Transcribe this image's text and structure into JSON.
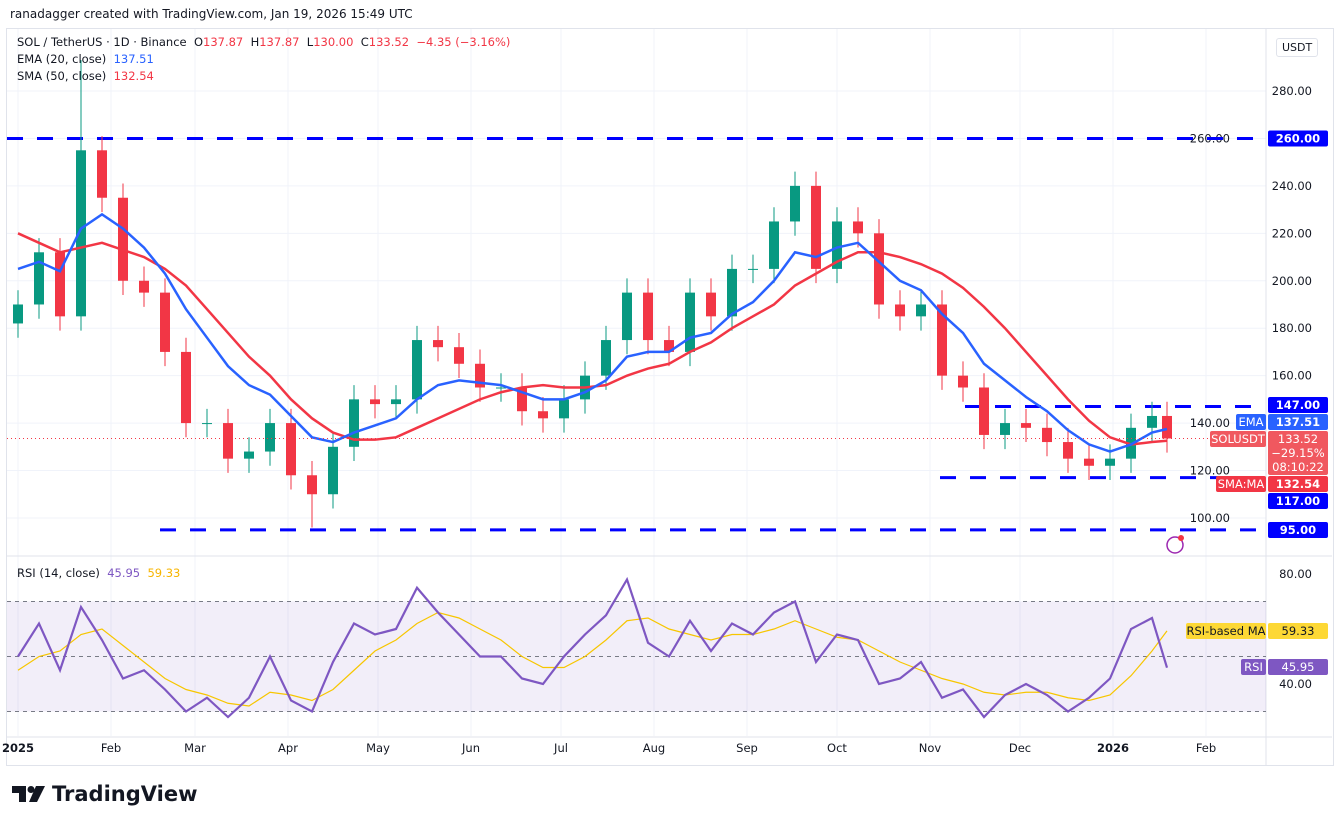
{
  "credit": "ranadagger created with TradingView.com, Jan 19, 2026 15:49 UTC",
  "legend": {
    "symbol": "SOL / TetherUS · 1D · Binance",
    "o_label": "O",
    "o": "137.87",
    "h_label": "H",
    "h": "137.87",
    "l_label": "L",
    "l": "130.00",
    "c_label": "C",
    "c": "133.52",
    "change": "−4.35 (−3.16%)",
    "ema_label": "EMA (20, close)",
    "ema": "137.51",
    "sma_label": "SMA (50, close)",
    "sma": "132.54",
    "rsi_label": "RSI (14, close)",
    "rsi": "45.95",
    "rsi_ma": "59.33"
  },
  "currency": "USDT",
  "logo": "TradingView",
  "colors": {
    "up": "#089981",
    "down": "#f23645",
    "ema": "#2962ff",
    "sma": "#f23645",
    "level": "#0000ff",
    "rsi": "#7e57c2",
    "rsi_ma": "#f7c600"
  },
  "chart_data": {
    "type": "candlestick",
    "x_ticks": [
      "2025",
      "Feb",
      "Mar",
      "Apr",
      "May",
      "Jun",
      "Jul",
      "Aug",
      "Sep",
      "Oct",
      "Nov",
      "Dec",
      "2026",
      "Feb"
    ],
    "y_ticks": [
      280,
      260,
      240,
      220,
      200,
      180,
      160,
      140,
      120,
      100
    ],
    "ylim": [
      90,
      300
    ],
    "levels": [
      {
        "value": 260,
        "label": "260.00"
      },
      {
        "value": 147,
        "label": "147.00"
      },
      {
        "value": 117,
        "label": "117.00"
      },
      {
        "value": 95,
        "label": "95.00"
      }
    ],
    "price_tags": [
      {
        "name": "EMA",
        "value": "137.51"
      },
      {
        "name": "SOLUSDT",
        "value": "133.52",
        "extra": [
          "−29.15%",
          "08:10:22"
        ]
      },
      {
        "name": "SMA:MA",
        "value": "132.54"
      }
    ],
    "dates": [
      "2025-01-01",
      "2025-01-08",
      "2025-01-15",
      "2025-01-22",
      "2025-01-29",
      "2025-02-05",
      "2025-02-12",
      "2025-02-19",
      "2025-02-26",
      "2025-03-05",
      "2025-03-12",
      "2025-03-19",
      "2025-03-26",
      "2025-04-02",
      "2025-04-09",
      "2025-04-16",
      "2025-04-23",
      "2025-04-30",
      "2025-05-07",
      "2025-05-14",
      "2025-05-21",
      "2025-05-28",
      "2025-06-04",
      "2025-06-11",
      "2025-06-18",
      "2025-06-25",
      "2025-07-02",
      "2025-07-09",
      "2025-07-16",
      "2025-07-23",
      "2025-07-30",
      "2025-08-06",
      "2025-08-13",
      "2025-08-20",
      "2025-08-27",
      "2025-09-03",
      "2025-09-10",
      "2025-09-17",
      "2025-09-24",
      "2025-10-01",
      "2025-10-08",
      "2025-10-15",
      "2025-10-22",
      "2025-10-29",
      "2025-11-05",
      "2025-11-12",
      "2025-11-19",
      "2025-11-26",
      "2025-12-03",
      "2025-12-10",
      "2025-12-17",
      "2025-12-24",
      "2025-12-31",
      "2026-01-07",
      "2026-01-14",
      "2026-01-19"
    ],
    "close": [
      190,
      212,
      185,
      255,
      235,
      200,
      195,
      170,
      140,
      140,
      125,
      128,
      140,
      118,
      110,
      130,
      150,
      148,
      150,
      175,
      172,
      165,
      155,
      155,
      145,
      142,
      150,
      160,
      175,
      195,
      175,
      170,
      195,
      185,
      205,
      205,
      225,
      240,
      205,
      225,
      220,
      190,
      185,
      190,
      160,
      155,
      135,
      140,
      138,
      132,
      125,
      122,
      125,
      138,
      143,
      133.52
    ],
    "ema": [
      205,
      208,
      204,
      222,
      228,
      222,
      214,
      203,
      188,
      176,
      164,
      156,
      152,
      143,
      134,
      132,
      136,
      139,
      142,
      150,
      156,
      158,
      157,
      156,
      153,
      150,
      150,
      153,
      158,
      168,
      170,
      170,
      176,
      178,
      186,
      191,
      200,
      212,
      210,
      214,
      216,
      208,
      200,
      196,
      186,
      178,
      165,
      158,
      151,
      145,
      137,
      131,
      128,
      131,
      136,
      137.51
    ],
    "sma": [
      220,
      216,
      212,
      214,
      216,
      213,
      210,
      205,
      198,
      188,
      178,
      168,
      160,
      150,
      142,
      136,
      133,
      133,
      134,
      138,
      142,
      146,
      150,
      153,
      155,
      156,
      155,
      155,
      156,
      160,
      163,
      165,
      170,
      174,
      180,
      185,
      190,
      198,
      203,
      208,
      212,
      212,
      210,
      207,
      203,
      197,
      189,
      180,
      170,
      160,
      150,
      141,
      134,
      131,
      132,
      132.54
    ],
    "rsi": [
      50,
      62,
      45,
      68,
      56,
      42,
      45,
      38,
      30,
      35,
      28,
      35,
      50,
      34,
      30,
      48,
      62,
      58,
      60,
      75,
      66,
      58,
      50,
      50,
      42,
      40,
      50,
      58,
      65,
      78,
      55,
      50,
      63,
      52,
      62,
      58,
      66,
      70,
      48,
      58,
      56,
      40,
      42,
      48,
      35,
      38,
      28,
      36,
      40,
      36,
      30,
      35,
      42,
      60,
      64,
      45.95
    ],
    "rsi_ma": [
      45,
      50,
      52,
      58,
      60,
      54,
      48,
      42,
      38,
      36,
      33,
      32,
      37,
      36,
      34,
      38,
      45,
      52,
      56,
      62,
      66,
      64,
      60,
      56,
      50,
      46,
      46,
      50,
      56,
      63,
      64,
      60,
      58,
      56,
      58,
      58,
      60,
      63,
      60,
      57,
      56,
      52,
      48,
      45,
      42,
      40,
      37,
      36,
      37,
      37,
      35,
      34,
      36,
      43,
      52,
      59.33
    ],
    "rsi_ticks": [
      80,
      40
    ],
    "rsi_bands": [
      70,
      30,
      50
    ]
  }
}
